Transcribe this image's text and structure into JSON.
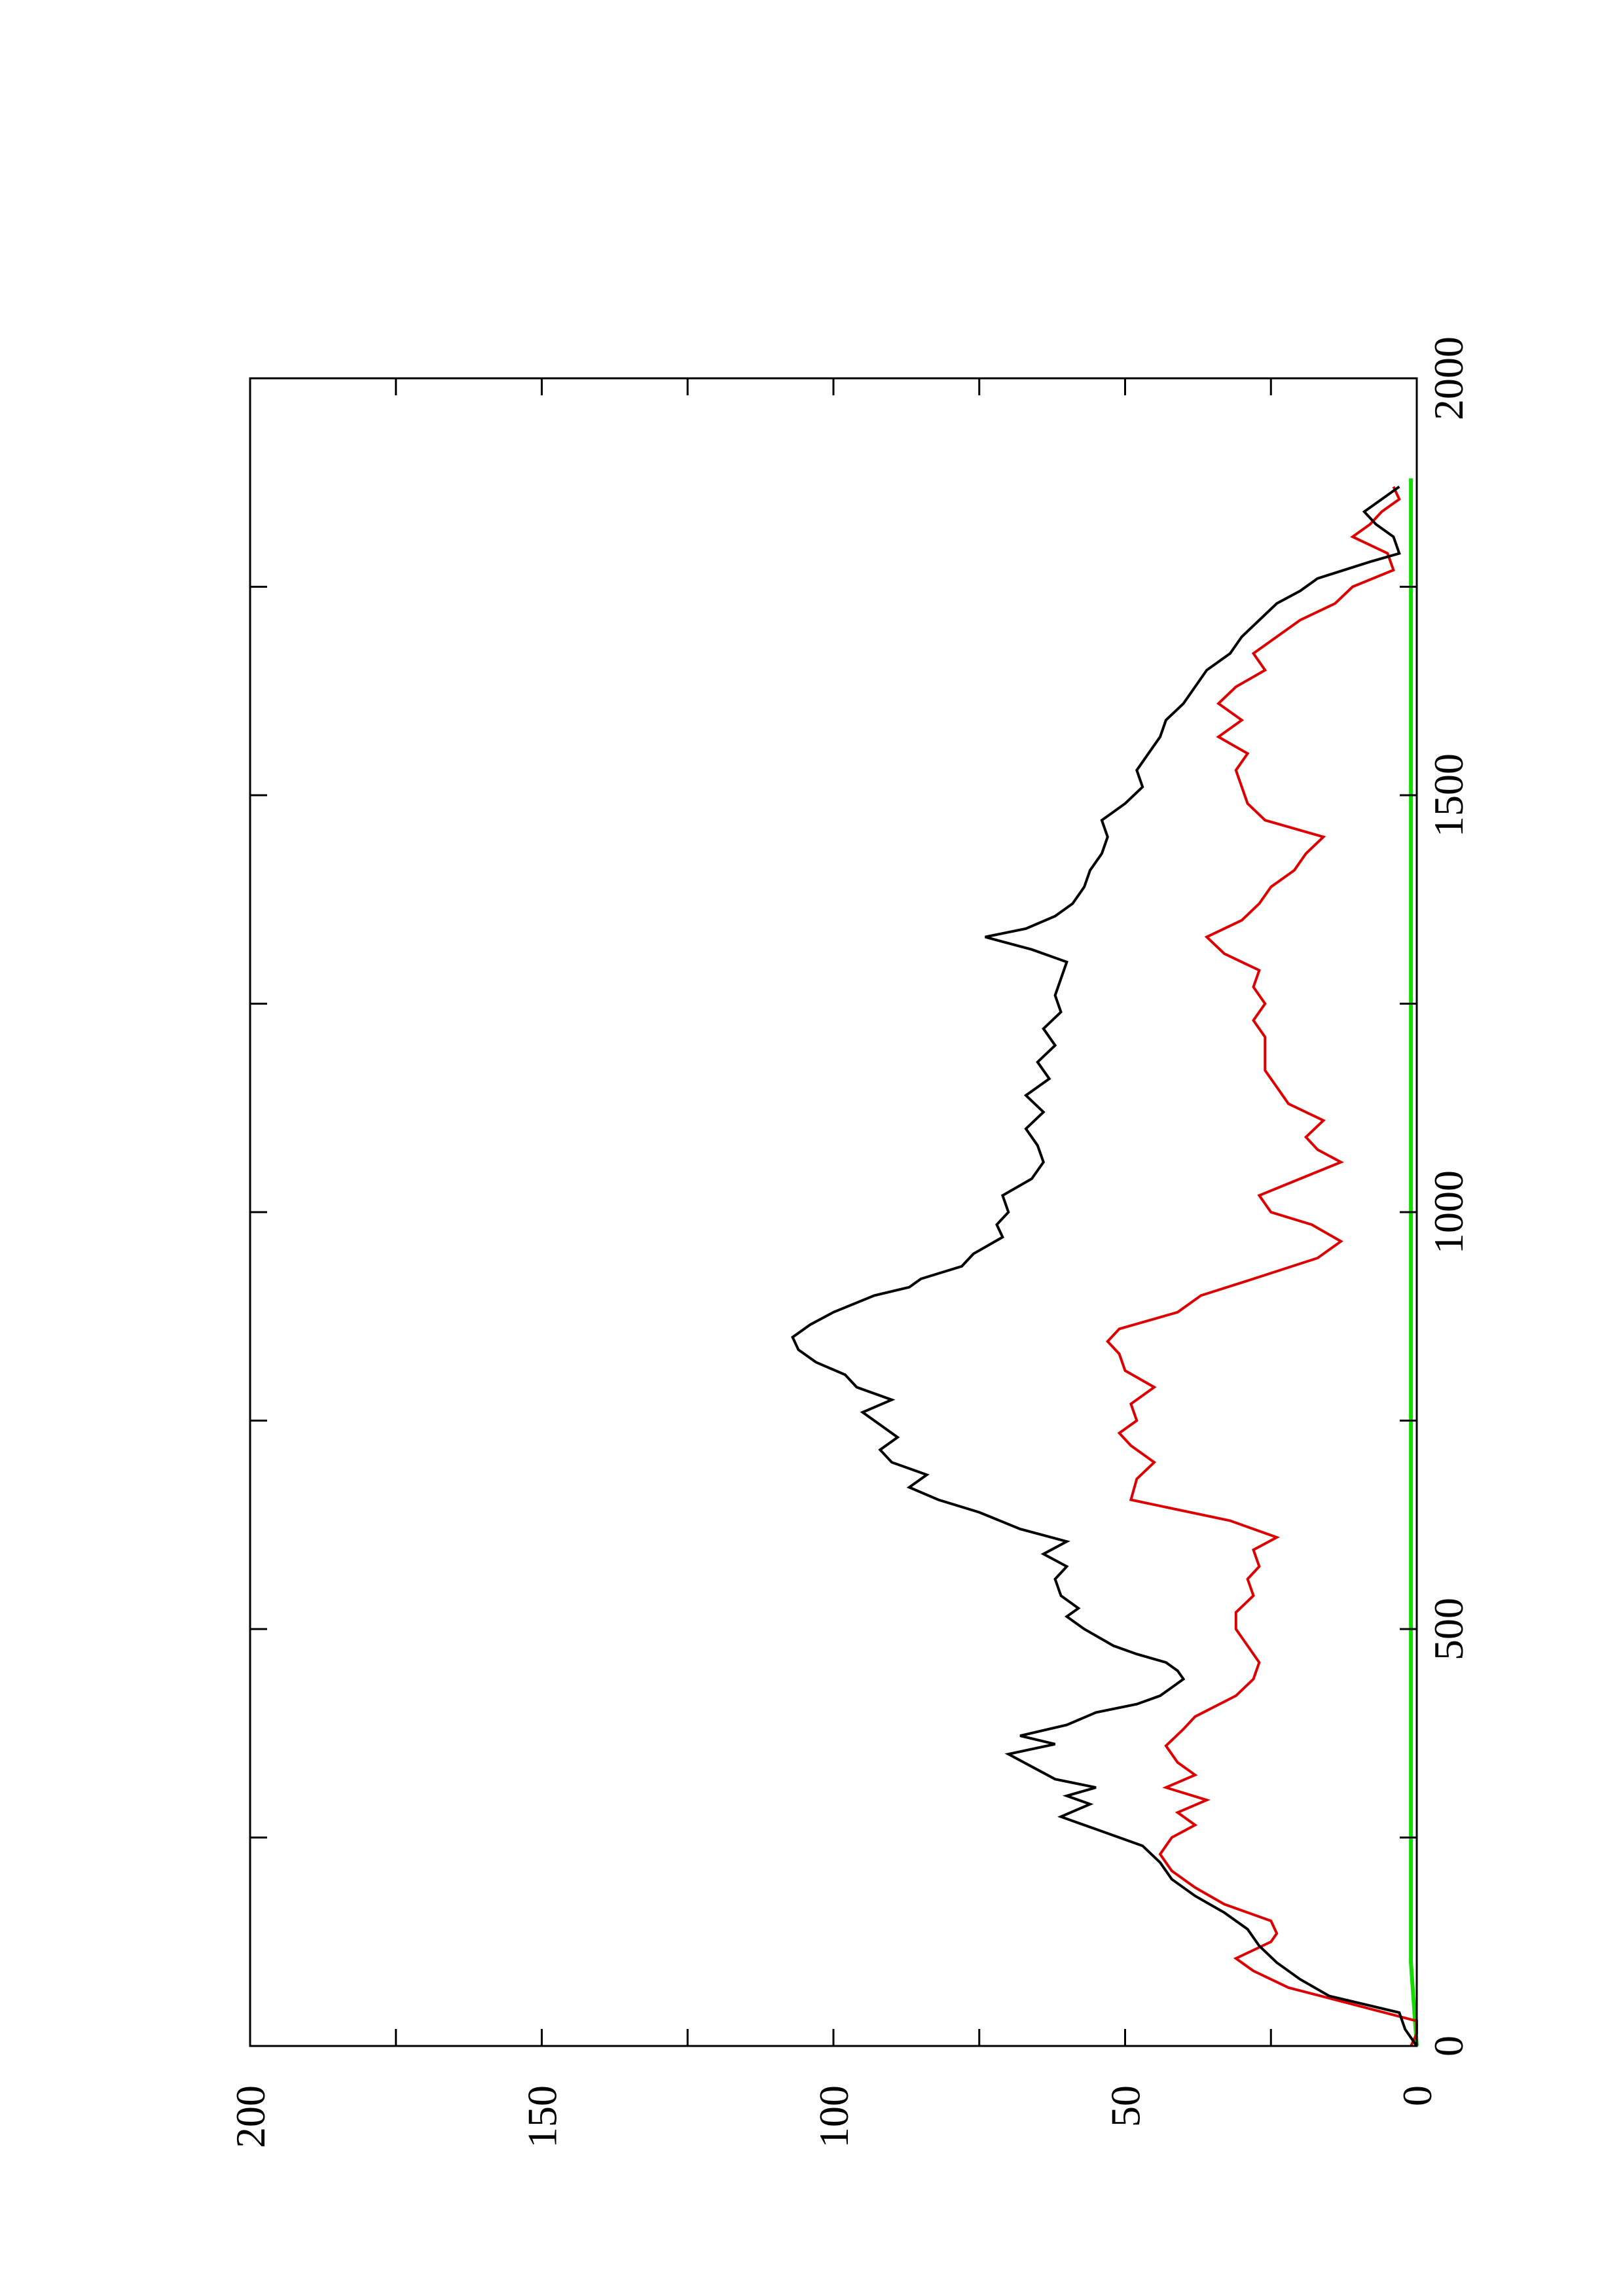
{
  "chart_data": {
    "type": "line",
    "title": "",
    "xlabel": "",
    "ylabel": "",
    "orientation": "rotated 90 degrees counter-clockwise (x axis runs bottom-to-top, y axis left-to-right)",
    "grid": false,
    "legend": "none",
    "xlim": [
      0,
      2000
    ],
    "ylim": [
      0,
      200
    ],
    "x_ticks": [
      0,
      500,
      1000,
      1500,
      2000
    ],
    "y_ticks": [
      0,
      50,
      100,
      150,
      200
    ],
    "x_tick_labels": [
      "0",
      "500",
      "1000",
      "1500",
      "2000"
    ],
    "y_tick_labels": [
      "0",
      "50",
      "100",
      "150",
      "200"
    ],
    "series": [
      {
        "color": "#000000",
        "points": [
          [
            0,
            0
          ],
          [
            20,
            2
          ],
          [
            40,
            3
          ],
          [
            60,
            15
          ],
          [
            80,
            20
          ],
          [
            100,
            24
          ],
          [
            120,
            27
          ],
          [
            140,
            29
          ],
          [
            160,
            33
          ],
          [
            180,
            38
          ],
          [
            200,
            42
          ],
          [
            220,
            44
          ],
          [
            240,
            47
          ],
          [
            260,
            55
          ],
          [
            275,
            61
          ],
          [
            290,
            56
          ],
          [
            300,
            60
          ],
          [
            310,
            55
          ],
          [
            320,
            62
          ],
          [
            335,
            66
          ],
          [
            350,
            70
          ],
          [
            362,
            62
          ],
          [
            372,
            68
          ],
          [
            385,
            60
          ],
          [
            400,
            55
          ],
          [
            410,
            48
          ],
          [
            420,
            44
          ],
          [
            430,
            42
          ],
          [
            440,
            40
          ],
          [
            450,
            41
          ],
          [
            460,
            43
          ],
          [
            470,
            48
          ],
          [
            480,
            52
          ],
          [
            500,
            57
          ],
          [
            515,
            60
          ],
          [
            525,
            58
          ],
          [
            540,
            61
          ],
          [
            560,
            62
          ],
          [
            575,
            60
          ],
          [
            590,
            64
          ],
          [
            605,
            60
          ],
          [
            620,
            68
          ],
          [
            640,
            75
          ],
          [
            655,
            82
          ],
          [
            670,
            87
          ],
          [
            685,
            84
          ],
          [
            700,
            90
          ],
          [
            715,
            92
          ],
          [
            730,
            89
          ],
          [
            745,
            92
          ],
          [
            760,
            95
          ],
          [
            775,
            90
          ],
          [
            790,
            96
          ],
          [
            805,
            98
          ],
          [
            820,
            103
          ],
          [
            835,
            106
          ],
          [
            850,
            107
          ],
          [
            865,
            104
          ],
          [
            880,
            100
          ],
          [
            900,
            93
          ],
          [
            910,
            87
          ],
          [
            920,
            85
          ],
          [
            935,
            78
          ],
          [
            950,
            76
          ],
          [
            970,
            71
          ],
          [
            985,
            72
          ],
          [
            1000,
            70
          ],
          [
            1020,
            71
          ],
          [
            1040,
            66
          ],
          [
            1060,
            64
          ],
          [
            1080,
            65
          ],
          [
            1100,
            67
          ],
          [
            1120,
            64
          ],
          [
            1140,
            67
          ],
          [
            1160,
            63
          ],
          [
            1180,
            65
          ],
          [
            1200,
            62
          ],
          [
            1220,
            64
          ],
          [
            1240,
            61
          ],
          [
            1260,
            62
          ],
          [
            1280,
            61
          ],
          [
            1300,
            60
          ],
          [
            1315,
            66
          ],
          [
            1330,
            74
          ],
          [
            1340,
            67
          ],
          [
            1355,
            62
          ],
          [
            1370,
            59
          ],
          [
            1390,
            57
          ],
          [
            1410,
            56
          ],
          [
            1430,
            54
          ],
          [
            1450,
            53
          ],
          [
            1470,
            54
          ],
          [
            1490,
            50
          ],
          [
            1510,
            47
          ],
          [
            1530,
            48
          ],
          [
            1550,
            46
          ],
          [
            1570,
            44
          ],
          [
            1590,
            43
          ],
          [
            1610,
            40
          ],
          [
            1630,
            38
          ],
          [
            1650,
            36
          ],
          [
            1670,
            32
          ],
          [
            1690,
            30
          ],
          [
            1710,
            27
          ],
          [
            1730,
            24
          ],
          [
            1745,
            20
          ],
          [
            1760,
            17
          ],
          [
            1780,
            8
          ],
          [
            1790,
            3
          ],
          [
            1810,
            4
          ],
          [
            1825,
            7
          ],
          [
            1840,
            9
          ],
          [
            1855,
            6
          ],
          [
            1870,
            3
          ]
        ]
      },
      {
        "color": "#dd0000",
        "points": [
          [
            0,
            1
          ],
          [
            15,
            0
          ],
          [
            30,
            0
          ],
          [
            50,
            11
          ],
          [
            70,
            22
          ],
          [
            90,
            28
          ],
          [
            100,
            30
          ],
          [
            105,
            31
          ],
          [
            125,
            25
          ],
          [
            135,
            24
          ],
          [
            150,
            25
          ],
          [
            170,
            33
          ],
          [
            190,
            38
          ],
          [
            210,
            42
          ],
          [
            230,
            44
          ],
          [
            250,
            42
          ],
          [
            265,
            38
          ],
          [
            280,
            41
          ],
          [
            295,
            36
          ],
          [
            310,
            43
          ],
          [
            325,
            38
          ],
          [
            340,
            41
          ],
          [
            360,
            43
          ],
          [
            380,
            40
          ],
          [
            395,
            38
          ],
          [
            420,
            31
          ],
          [
            440,
            28
          ],
          [
            460,
            27
          ],
          [
            480,
            29
          ],
          [
            500,
            31
          ],
          [
            520,
            31
          ],
          [
            540,
            28
          ],
          [
            560,
            29
          ],
          [
            575,
            27
          ],
          [
            595,
            28
          ],
          [
            610,
            24
          ],
          [
            630,
            32
          ],
          [
            655,
            49
          ],
          [
            680,
            48
          ],
          [
            700,
            45
          ],
          [
            720,
            49
          ],
          [
            735,
            51
          ],
          [
            750,
            48
          ],
          [
            770,
            49
          ],
          [
            790,
            45
          ],
          [
            810,
            50
          ],
          [
            830,
            51
          ],
          [
            845,
            53
          ],
          [
            860,
            51
          ],
          [
            880,
            41
          ],
          [
            900,
            37
          ],
          [
            920,
            28
          ],
          [
            945,
            17
          ],
          [
            965,
            13
          ],
          [
            985,
            18
          ],
          [
            1000,
            25
          ],
          [
            1020,
            27
          ],
          [
            1040,
            20
          ],
          [
            1060,
            13
          ],
          [
            1075,
            17
          ],
          [
            1090,
            19
          ],
          [
            1110,
            16
          ],
          [
            1130,
            22
          ],
          [
            1150,
            24
          ],
          [
            1170,
            26
          ],
          [
            1190,
            26
          ],
          [
            1210,
            26
          ],
          [
            1230,
            28
          ],
          [
            1250,
            26
          ],
          [
            1270,
            28
          ],
          [
            1290,
            27
          ],
          [
            1310,
            33
          ],
          [
            1330,
            36
          ],
          [
            1350,
            30
          ],
          [
            1370,
            27
          ],
          [
            1390,
            25
          ],
          [
            1410,
            21
          ],
          [
            1430,
            19
          ],
          [
            1450,
            16
          ],
          [
            1470,
            26
          ],
          [
            1490,
            29
          ],
          [
            1510,
            30
          ],
          [
            1530,
            31
          ],
          [
            1550,
            29
          ],
          [
            1570,
            34
          ],
          [
            1590,
            30
          ],
          [
            1610,
            34
          ],
          [
            1630,
            31
          ],
          [
            1650,
            26
          ],
          [
            1670,
            28
          ],
          [
            1690,
            24
          ],
          [
            1710,
            20
          ],
          [
            1730,
            14
          ],
          [
            1750,
            11
          ],
          [
            1770,
            4
          ],
          [
            1790,
            5
          ],
          [
            1810,
            11
          ],
          [
            1825,
            8
          ],
          [
            1840,
            6
          ],
          [
            1855,
            3
          ],
          [
            1870,
            4
          ]
        ]
      },
      {
        "color": "#11dd00",
        "points": [
          [
            0,
            0
          ],
          [
            100,
            1
          ],
          [
            200,
            1
          ],
          [
            300,
            1
          ],
          [
            400,
            1
          ],
          [
            500,
            1
          ],
          [
            600,
            1
          ],
          [
            700,
            1
          ],
          [
            800,
            1
          ],
          [
            900,
            1
          ],
          [
            1000,
            1
          ],
          [
            1100,
            1
          ],
          [
            1200,
            1
          ],
          [
            1300,
            1
          ],
          [
            1400,
            1
          ],
          [
            1500,
            1
          ],
          [
            1600,
            1
          ],
          [
            1700,
            1
          ],
          [
            1800,
            1
          ],
          [
            1880,
            1
          ]
        ]
      }
    ]
  }
}
